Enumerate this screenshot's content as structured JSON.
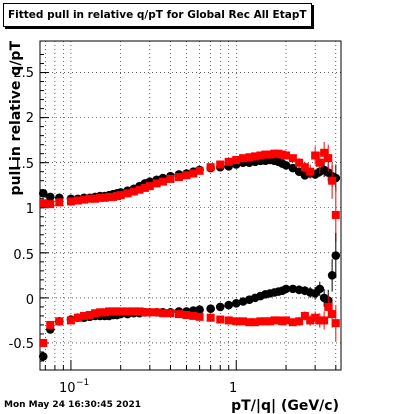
{
  "title": "Fitted pull in relative q/pT for Global Rec All EtapT",
  "timestamp": "Mon May 24 16:30:45 2021",
  "chart_data": {
    "type": "scatter",
    "xlabel": "pT/|q| (GeV/c)",
    "ylabel": "pull in relative q/pT",
    "xscale": "log",
    "xlim": [
      0.065,
      4.3
    ],
    "ylim": [
      -0.8,
      2.85
    ],
    "xtick_labels": [
      "10^-1",
      "1"
    ],
    "ytick_labels": [
      "-0.5",
      "0",
      "0.5",
      "1",
      "1.5",
      "2",
      "2.5"
    ],
    "grid": true,
    "colors": {
      "black": "#000000",
      "red": "#ff0000"
    },
    "series": [
      {
        "marker": "black-circle",
        "color": "#000000",
        "x": [
          0.068,
          0.075,
          0.085,
          0.1,
          0.11,
          0.12,
          0.13,
          0.14,
          0.15,
          0.16,
          0.17,
          0.18,
          0.19,
          0.2,
          0.22,
          0.24,
          0.26,
          0.28,
          0.3,
          0.33,
          0.36,
          0.4,
          0.45,
          0.5,
          0.55,
          0.6,
          0.7,
          0.8,
          0.9,
          1.0,
          1.1,
          1.2,
          1.3,
          1.4,
          1.5,
          1.6,
          1.7,
          1.8,
          1.9,
          2.0,
          2.2,
          2.4,
          2.6,
          2.8,
          3.0,
          3.2,
          3.4,
          3.6,
          3.8,
          4.0
        ],
        "y": [
          1.16,
          1.12,
          1.11,
          1.1,
          1.1,
          1.11,
          1.11,
          1.12,
          1.13,
          1.13,
          1.14,
          1.15,
          1.16,
          1.17,
          1.19,
          1.21,
          1.24,
          1.27,
          1.29,
          1.31,
          1.33,
          1.35,
          1.37,
          1.38,
          1.4,
          1.42,
          1.44,
          1.45,
          1.46,
          1.48,
          1.5,
          1.5,
          1.51,
          1.52,
          1.52,
          1.53,
          1.52,
          1.51,
          1.49,
          1.47,
          1.44,
          1.4,
          1.36,
          1.38,
          1.37,
          1.4,
          1.42,
          1.39,
          1.35,
          1.33
        ],
        "yerr": [
          0.04,
          0.03,
          0.02,
          0.02,
          0.02,
          0.02,
          0.02,
          0.02,
          0.02,
          0.02,
          0.02,
          0.02,
          0.02,
          0.02,
          0.02,
          0.02,
          0.02,
          0.02,
          0.02,
          0.02,
          0.02,
          0.02,
          0.02,
          0.02,
          0.02,
          0.02,
          0.02,
          0.02,
          0.02,
          0.02,
          0.02,
          0.02,
          0.02,
          0.02,
          0.02,
          0.02,
          0.02,
          0.02,
          0.03,
          0.03,
          0.03,
          0.04,
          0.04,
          0.05,
          0.05,
          0.06,
          0.08,
          0.1,
          0.12,
          0.15
        ]
      },
      {
        "marker": "red-square",
        "color": "#ff0000",
        "x": [
          0.068,
          0.075,
          0.085,
          0.1,
          0.11,
          0.12,
          0.13,
          0.14,
          0.15,
          0.16,
          0.17,
          0.18,
          0.19,
          0.2,
          0.22,
          0.24,
          0.26,
          0.28,
          0.3,
          0.33,
          0.36,
          0.4,
          0.45,
          0.5,
          0.55,
          0.6,
          0.7,
          0.8,
          0.9,
          1.0,
          1.1,
          1.2,
          1.3,
          1.4,
          1.5,
          1.6,
          1.7,
          1.8,
          1.9,
          2.0,
          2.2,
          2.4,
          2.6,
          2.8,
          3.0,
          3.2,
          3.4,
          3.6,
          3.8,
          4.0
        ],
        "y": [
          1.05,
          1.04,
          1.06,
          1.07,
          1.08,
          1.09,
          1.1,
          1.1,
          1.11,
          1.11,
          1.12,
          1.12,
          1.13,
          1.14,
          1.16,
          1.18,
          1.2,
          1.22,
          1.24,
          1.27,
          1.29,
          1.32,
          1.34,
          1.36,
          1.38,
          1.41,
          1.45,
          1.48,
          1.51,
          1.53,
          1.55,
          1.56,
          1.57,
          1.58,
          1.59,
          1.59,
          1.6,
          1.6,
          1.59,
          1.58,
          1.55,
          1.5,
          1.45,
          1.4,
          1.58,
          1.5,
          1.61,
          1.55,
          1.3,
          0.92
        ],
        "yerr": [
          0.03,
          0.02,
          0.02,
          0.02,
          0.02,
          0.02,
          0.02,
          0.02,
          0.02,
          0.02,
          0.02,
          0.02,
          0.02,
          0.02,
          0.02,
          0.02,
          0.02,
          0.02,
          0.02,
          0.02,
          0.02,
          0.02,
          0.02,
          0.02,
          0.02,
          0.02,
          0.02,
          0.02,
          0.02,
          0.02,
          0.02,
          0.02,
          0.02,
          0.02,
          0.02,
          0.02,
          0.02,
          0.02,
          0.03,
          0.03,
          0.04,
          0.05,
          0.06,
          0.08,
          0.1,
          0.12,
          0.12,
          0.15,
          0.2,
          0.3
        ]
      },
      {
        "marker": "black-circle",
        "color": "#000000",
        "x": [
          0.068,
          0.075,
          0.085,
          0.1,
          0.11,
          0.12,
          0.13,
          0.14,
          0.15,
          0.16,
          0.17,
          0.18,
          0.19,
          0.2,
          0.22,
          0.24,
          0.26,
          0.28,
          0.3,
          0.33,
          0.36,
          0.4,
          0.45,
          0.5,
          0.55,
          0.6,
          0.7,
          0.8,
          0.9,
          1.0,
          1.1,
          1.2,
          1.3,
          1.4,
          1.5,
          1.6,
          1.7,
          1.8,
          1.9,
          2.0,
          2.2,
          2.4,
          2.6,
          2.8,
          3.0,
          3.2,
          3.4,
          3.6,
          3.8,
          4.0
        ],
        "y": [
          -0.65,
          -0.35,
          -0.26,
          -0.24,
          -0.22,
          -0.22,
          -0.21,
          -0.2,
          -0.2,
          -0.2,
          -0.2,
          -0.19,
          -0.19,
          -0.18,
          -0.18,
          -0.17,
          -0.17,
          -0.16,
          -0.16,
          -0.16,
          -0.16,
          -0.16,
          -0.15,
          -0.15,
          -0.14,
          -0.13,
          -0.12,
          -0.1,
          -0.08,
          -0.06,
          -0.04,
          -0.02,
          0.0,
          0.02,
          0.04,
          0.05,
          0.06,
          0.07,
          0.08,
          0.1,
          0.1,
          0.09,
          0.08,
          0.06,
          0.05,
          0.1,
          0.0,
          -0.03,
          0.25,
          0.47
        ],
        "yerr": [
          0.05,
          0.03,
          0.02,
          0.02,
          0.02,
          0.02,
          0.02,
          0.02,
          0.02,
          0.02,
          0.02,
          0.02,
          0.02,
          0.02,
          0.02,
          0.02,
          0.02,
          0.02,
          0.02,
          0.02,
          0.02,
          0.02,
          0.02,
          0.02,
          0.02,
          0.02,
          0.02,
          0.02,
          0.02,
          0.02,
          0.02,
          0.02,
          0.02,
          0.02,
          0.02,
          0.02,
          0.03,
          0.03,
          0.03,
          0.03,
          0.04,
          0.05,
          0.05,
          0.06,
          0.07,
          0.08,
          0.1,
          0.12,
          0.18,
          0.25
        ]
      },
      {
        "marker": "red-square",
        "color": "#ff0000",
        "x": [
          0.068,
          0.075,
          0.085,
          0.1,
          0.11,
          0.12,
          0.13,
          0.14,
          0.15,
          0.16,
          0.17,
          0.18,
          0.19,
          0.2,
          0.22,
          0.24,
          0.26,
          0.28,
          0.3,
          0.33,
          0.36,
          0.4,
          0.45,
          0.5,
          0.55,
          0.6,
          0.7,
          0.8,
          0.9,
          1.0,
          1.1,
          1.2,
          1.3,
          1.4,
          1.5,
          1.6,
          1.7,
          1.8,
          1.9,
          2.0,
          2.2,
          2.4,
          2.6,
          2.8,
          3.0,
          3.2,
          3.4,
          3.6,
          3.8,
          4.0
        ],
        "y": [
          -0.5,
          -0.3,
          -0.26,
          -0.25,
          -0.22,
          -0.2,
          -0.19,
          -0.17,
          -0.16,
          -0.16,
          -0.15,
          -0.15,
          -0.15,
          -0.15,
          -0.15,
          -0.15,
          -0.15,
          -0.16,
          -0.16,
          -0.16,
          -0.17,
          -0.17,
          -0.18,
          -0.19,
          -0.2,
          -0.21,
          -0.22,
          -0.24,
          -0.25,
          -0.26,
          -0.26,
          -0.27,
          -0.27,
          -0.26,
          -0.26,
          -0.26,
          -0.25,
          -0.25,
          -0.26,
          -0.25,
          -0.27,
          -0.26,
          -0.2,
          -0.25,
          -0.22,
          -0.25,
          -0.25,
          -0.1,
          -0.18,
          -0.28
        ],
        "yerr": [
          0.03,
          0.02,
          0.02,
          0.02,
          0.02,
          0.02,
          0.02,
          0.02,
          0.02,
          0.02,
          0.02,
          0.02,
          0.02,
          0.02,
          0.02,
          0.02,
          0.02,
          0.02,
          0.02,
          0.02,
          0.02,
          0.02,
          0.02,
          0.02,
          0.02,
          0.02,
          0.02,
          0.02,
          0.02,
          0.02,
          0.02,
          0.02,
          0.02,
          0.02,
          0.02,
          0.02,
          0.02,
          0.03,
          0.03,
          0.03,
          0.04,
          0.05,
          0.05,
          0.06,
          0.07,
          0.08,
          0.1,
          0.12,
          0.15,
          0.2
        ]
      }
    ]
  }
}
